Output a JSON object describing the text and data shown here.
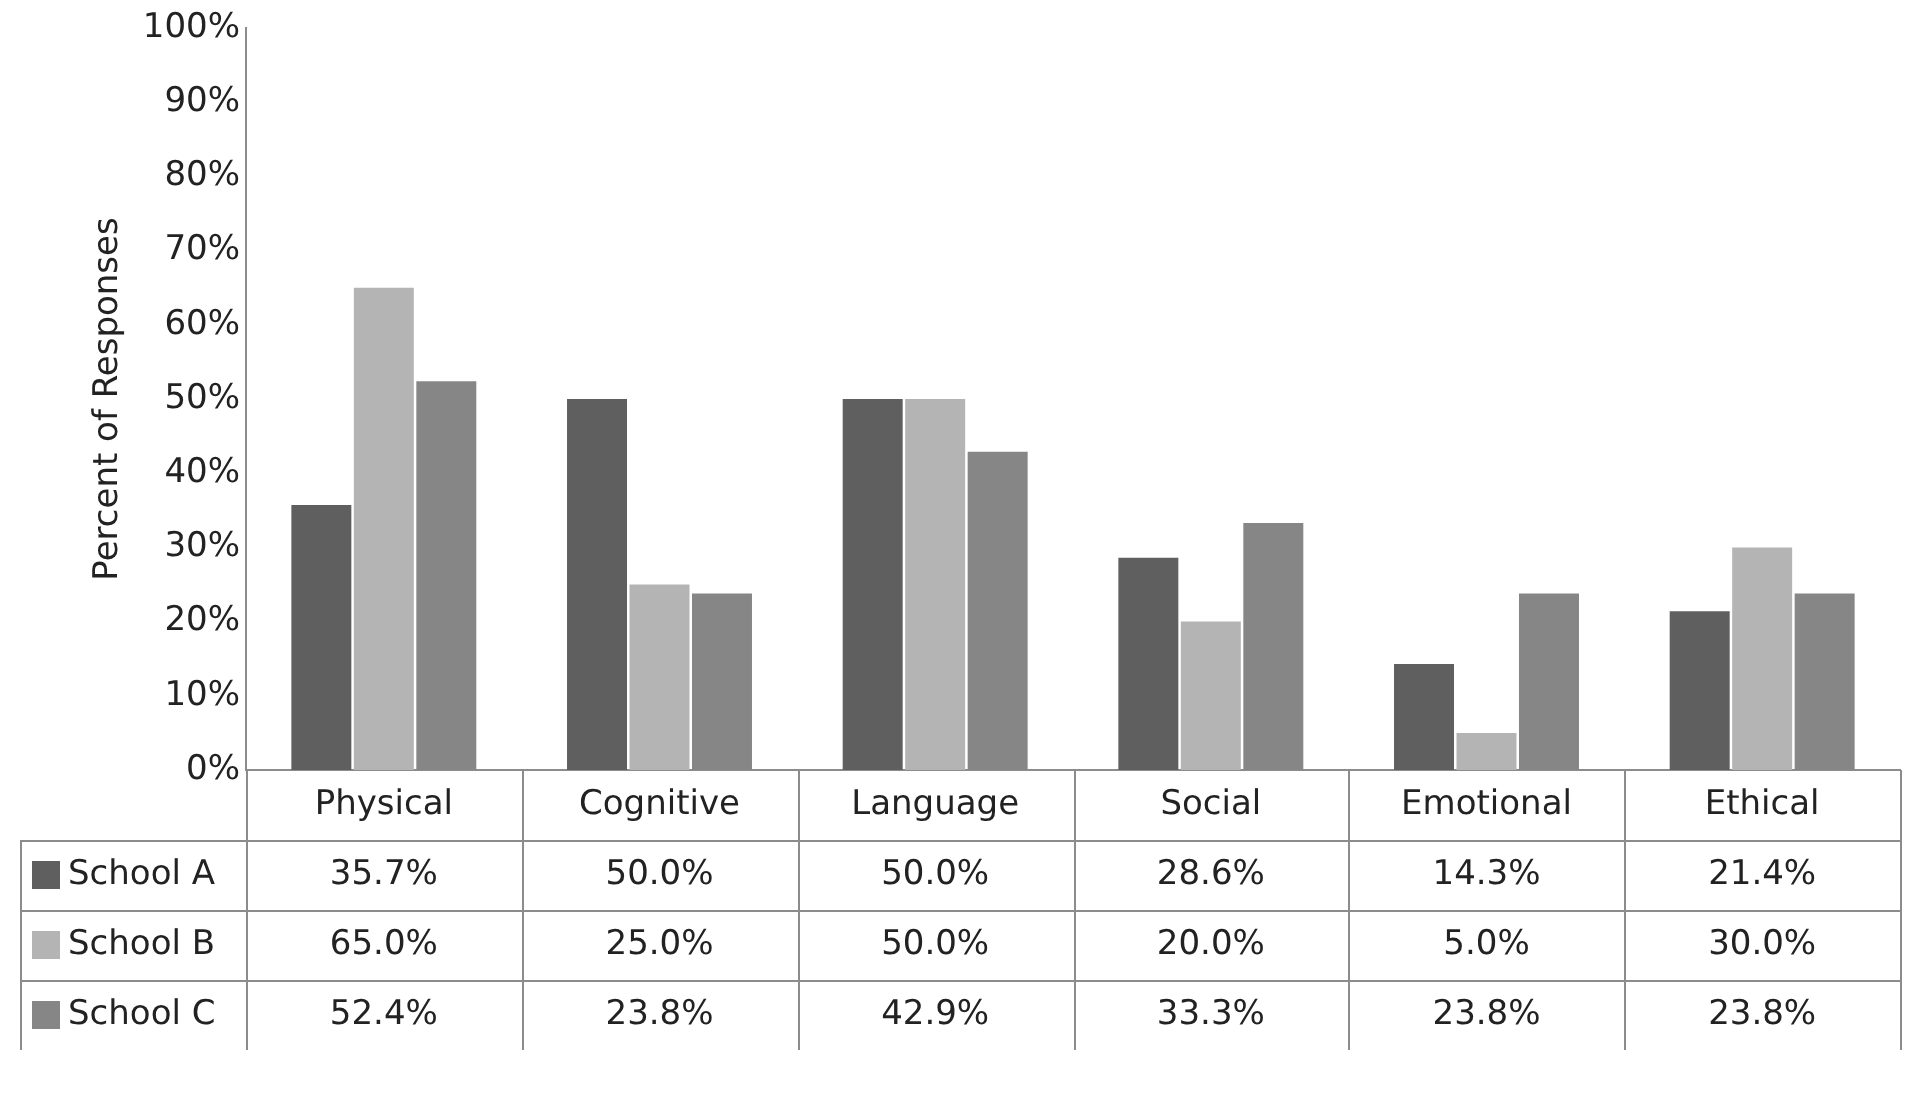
{
  "chart_data": {
    "type": "bar",
    "ylabel": "Percent of Responses",
    "categories": [
      "Physical",
      "Cognitive",
      "Language",
      "Social",
      "Emotional",
      "Ethical"
    ],
    "series": [
      {
        "name": "School A",
        "color": "#5f5f5f",
        "values": [
          35.7,
          50.0,
          50.0,
          28.6,
          14.3,
          21.4
        ],
        "value_labels": [
          "35.7%",
          "50.0%",
          "50.0%",
          "28.6%",
          "14.3%",
          "21.4%"
        ]
      },
      {
        "name": "School B",
        "color": "#b4b4b4",
        "values": [
          65.0,
          25.0,
          50.0,
          20.0,
          5.0,
          30.0
        ],
        "value_labels": [
          "65.0%",
          "25.0%",
          "50.0%",
          "20.0%",
          "5.0%",
          "30.0%"
        ]
      },
      {
        "name": "School C",
        "color": "#868686",
        "values": [
          52.4,
          23.8,
          42.9,
          33.3,
          23.8,
          23.8
        ],
        "value_labels": [
          "52.4%",
          "23.8%",
          "42.9%",
          "33.3%",
          "23.8%",
          "23.8%"
        ]
      }
    ],
    "ylim": [
      0,
      100
    ],
    "yticks": [
      {
        "value": 0,
        "label": "0%"
      },
      {
        "value": 10,
        "label": "10%"
      },
      {
        "value": 20,
        "label": "20%"
      },
      {
        "value": 30,
        "label": "30%"
      },
      {
        "value": 40,
        "label": "40%"
      },
      {
        "value": 50,
        "label": "50%"
      },
      {
        "value": 60,
        "label": "60%"
      },
      {
        "value": 70,
        "label": "70%"
      },
      {
        "value": 80,
        "label": "80%"
      },
      {
        "value": 90,
        "label": "90%"
      },
      {
        "value": 100,
        "label": "100%"
      }
    ],
    "grid": false,
    "legend": "bottom"
  }
}
